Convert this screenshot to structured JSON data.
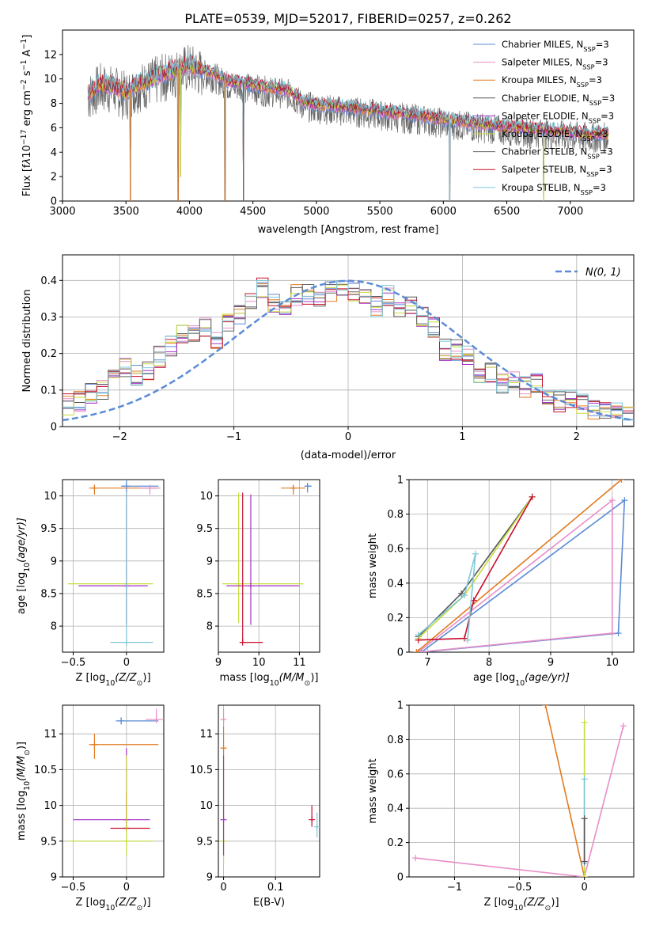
{
  "figure": {
    "title": "PLATE=0539, MJD=52017, FIBERID=0257, z=0.262"
  },
  "colors": {
    "series": [
      "#5b8bd6",
      "#e88ec8",
      "#e07b20",
      "#555555",
      "#a633c8",
      "#c8dc3c",
      "#666666",
      "#c8102e",
      "#7ec8d8"
    ]
  },
  "chart_data": [
    {
      "id": "spectrum",
      "type": "line",
      "xlabel": "wavelength [Angstrom, rest frame]",
      "ylabel_parts": [
        "Flux [f",
        "λ",
        "10",
        "−17",
        " erg cm",
        "−2",
        " s",
        "−1",
        " A",
        "−1",
        "]"
      ],
      "xlim": [
        3000,
        7500
      ],
      "ylim": [
        0,
        14
      ],
      "xticks": [
        3000,
        3500,
        4000,
        4500,
        5000,
        5500,
        6000,
        6500,
        7000
      ],
      "yticks": [
        0,
        2,
        4,
        6,
        8,
        10,
        12
      ],
      "legend": "top-right",
      "legend_entries": [
        {
          "base": "Chabrier MILES, N",
          "sub": "SSP",
          "suffix": "=3",
          "color_index": 0
        },
        {
          "base": "Salpeter MILES, N",
          "sub": "SSP",
          "suffix": "=3",
          "color_index": 1
        },
        {
          "base": "Kroupa MILES, N",
          "sub": "SSP",
          "suffix": "=3",
          "color_index": 2
        },
        {
          "base": "Chabrier ELODIE, N",
          "sub": "SSP",
          "suffix": "=3",
          "color_index": 3
        },
        {
          "base": "Salpeter ELODIE, N",
          "sub": "SSP",
          "suffix": "=3",
          "color_index": 4
        },
        {
          "base": "Kroupa ELODIE, N",
          "sub": "SSP",
          "suffix": "=3",
          "color_index": 5
        },
        {
          "base": "Chabrier STELIB, N",
          "sub": "SSP",
          "suffix": "=3",
          "color_index": 6
        },
        {
          "base": "Salpeter STELIB, N",
          "sub": "SSP",
          "suffix": "=3",
          "color_index": 7
        },
        {
          "base": "Kroupa STELIB, N",
          "sub": "SSP",
          "suffix": "=3",
          "color_index": 8
        }
      ],
      "continuum": {
        "x": [
          3200,
          3300,
          3400,
          3500,
          3600,
          3700,
          3800,
          3900,
          4000,
          4100,
          4200,
          4300,
          4400,
          4500,
          4600,
          4700,
          4800,
          4900,
          5000,
          5200,
          5400,
          5600,
          5800,
          6000,
          6200,
          6400,
          6600,
          6800,
          7000,
          7200,
          7300
        ],
        "y": [
          8.8,
          9.6,
          9.4,
          8.9,
          9.6,
          10.0,
          10.4,
          10.8,
          11.2,
          10.7,
          10.4,
          9.8,
          9.7,
          9.5,
          9.3,
          9.2,
          9.0,
          8.1,
          7.9,
          7.7,
          7.5,
          7.2,
          7.0,
          6.7,
          6.4,
          6.2,
          6.0,
          5.8,
          5.6,
          5.5,
          5.5
        ]
      },
      "absorption_lines": [
        {
          "x": 3535,
          "y": 0.0
        },
        {
          "x": 3911,
          "y": 0.0
        },
        {
          "x": 3930,
          "y": 2.0
        },
        {
          "x": 4280,
          "y": 0.0
        },
        {
          "x": 4425,
          "y": 0.0
        },
        {
          "x": 6050,
          "y": 0.0
        },
        {
          "x": 6790,
          "y": 0.0
        }
      ]
    },
    {
      "id": "residuals",
      "type": "histogram",
      "xlabel": "(data-model)/error",
      "ylabel": "Normed distribution",
      "xlim": [
        -2.5,
        2.5
      ],
      "ylim": [
        0,
        0.47
      ],
      "xticks": [
        -2,
        -1,
        0,
        1,
        2
      ],
      "yticks": [
        0.0,
        0.1,
        0.2,
        0.3,
        0.4
      ],
      "legend": "top-right",
      "legend_label": "N(0, 1)",
      "bin_centers": [
        -2.45,
        -2.35,
        -2.25,
        -2.15,
        -2.05,
        -1.95,
        -1.85,
        -1.75,
        -1.65,
        -1.55,
        -1.45,
        -1.35,
        -1.25,
        -1.15,
        -1.05,
        -0.95,
        -0.85,
        -0.75,
        -0.65,
        -0.55,
        -0.45,
        -0.35,
        -0.25,
        -0.15,
        -0.05,
        0.05,
        0.15,
        0.25,
        0.35,
        0.45,
        0.55,
        0.65,
        0.75,
        0.85,
        0.95,
        1.05,
        1.15,
        1.25,
        1.35,
        1.45,
        1.55,
        1.65,
        1.75,
        1.85,
        1.95,
        2.05,
        2.15,
        2.25,
        2.35,
        2.45
      ],
      "base_values": [
        0.06,
        0.07,
        0.09,
        0.1,
        0.13,
        0.16,
        0.14,
        0.15,
        0.19,
        0.22,
        0.25,
        0.25,
        0.27,
        0.23,
        0.29,
        0.31,
        0.34,
        0.38,
        0.34,
        0.33,
        0.36,
        0.36,
        0.34,
        0.37,
        0.38,
        0.37,
        0.35,
        0.33,
        0.36,
        0.32,
        0.33,
        0.3,
        0.27,
        0.21,
        0.21,
        0.2,
        0.15,
        0.15,
        0.12,
        0.13,
        0.11,
        0.12,
        0.09,
        0.07,
        0.08,
        0.06,
        0.05,
        0.05,
        0.04,
        0.03
      ]
    },
    {
      "id": "age-vs-Z",
      "type": "scatter",
      "xlabel_parts": [
        "Z [log",
        "10",
        "(Z/Z",
        "⊙",
        ")]"
      ],
      "ylabel_parts": [
        "age  [log",
        "10",
        "(age/yr)]"
      ],
      "xlim": [
        -0.6,
        0.35
      ],
      "ylim": [
        7.6,
        10.25
      ],
      "xticks": [
        -0.5,
        0.0
      ],
      "yticks": [
        8.0,
        8.5,
        9.0,
        9.5,
        10.0
      ],
      "points": [
        {
          "x": 0.0,
          "y": 10.15,
          "xerr": [
            0.05,
            0.3
          ],
          "yerr": [
            0.15,
            0.1
          ],
          "color_index": 0
        },
        {
          "x": -0.3,
          "y": 10.12,
          "xerr": [
            0.05,
            0.6
          ],
          "yerr": [
            0.1,
            0.05
          ],
          "color_index": 2
        },
        {
          "x": 0.22,
          "y": 10.12,
          "xerr": [
            0.1,
            0.1
          ],
          "yerr": [
            0.1,
            0.05
          ],
          "color_index": 1
        },
        {
          "x": 0.0,
          "y": 8.65,
          "xerr": [
            0.55,
            0.25
          ],
          "yerr": [
            0.6,
            1.4
          ],
          "color_index": 5
        },
        {
          "x": 0.0,
          "y": 8.62,
          "xerr": [
            0.45,
            0.2
          ],
          "yerr": [
            0.6,
            1.4
          ],
          "color_index": 4
        },
        {
          "x": 0.0,
          "y": 7.75,
          "xerr": [
            0.15,
            0.25
          ],
          "yerr": [
            0.0,
            2.3
          ],
          "color_index": 8
        }
      ]
    },
    {
      "id": "age-vs-mass",
      "type": "scatter",
      "xlabel_parts": [
        "mass [log",
        "10",
        "(M/M",
        "⊙",
        ")]"
      ],
      "ylabel": "",
      "xlim": [
        9.0,
        11.5
      ],
      "ylim": [
        7.6,
        10.25
      ],
      "xticks": [
        9,
        10,
        11
      ],
      "yticks": [
        8.0,
        8.5,
        9.0,
        9.5,
        10.0
      ],
      "points": [
        {
          "x": 11.2,
          "y": 10.15,
          "xerr": [
            0.05,
            0.1
          ],
          "yerr": [
            0.1,
            0.05
          ],
          "color_index": 0
        },
        {
          "x": 10.85,
          "y": 10.12,
          "xerr": [
            0.3,
            0.3
          ],
          "yerr": [
            0.1,
            0.05
          ],
          "color_index": 2
        },
        {
          "x": 9.5,
          "y": 8.65,
          "xerr": [
            0.4,
            1.6
          ],
          "yerr": [
            0.6,
            1.4
          ],
          "color_index": 5
        },
        {
          "x": 9.8,
          "y": 8.62,
          "xerr": [
            0.6,
            1.2
          ],
          "yerr": [
            0.6,
            1.4
          ],
          "color_index": 4
        },
        {
          "x": 9.6,
          "y": 7.75,
          "xerr": [
            0.05,
            0.5
          ],
          "yerr": [
            0.0,
            2.3
          ],
          "color_index": 7
        }
      ]
    },
    {
      "id": "weight-vs-age",
      "type": "line",
      "xlabel_parts": [
        "age  [log",
        "10",
        "(age/yr)]"
      ],
      "ylabel": "mass weight",
      "xlim": [
        6.7,
        10.35
      ],
      "ylim": [
        0,
        1
      ],
      "xticks": [
        7,
        8,
        9,
        10
      ],
      "yticks": [
        0.0,
        0.2,
        0.4,
        0.6,
        0.8,
        1.0
      ],
      "series": [
        {
          "color_index": 0,
          "points": [
            [
              6.9,
              0.0
            ],
            [
              10.1,
              0.11
            ],
            [
              10.2,
              0.88
            ],
            [
              6.9,
              0.0
            ]
          ]
        },
        {
          "color_index": 1,
          "points": [
            [
              6.85,
              0.0
            ],
            [
              10.0,
              0.88
            ],
            [
              10.0,
              0.11
            ],
            [
              6.85,
              0.0
            ]
          ]
        },
        {
          "color_index": 2,
          "points": [
            [
              6.82,
              0.0
            ],
            [
              10.15,
              1.0
            ]
          ]
        },
        {
          "color_index": 3,
          "points": [
            [
              6.85,
              0.09
            ],
            [
              7.55,
              0.34
            ],
            [
              8.7,
              0.9
            ]
          ]
        },
        {
          "color_index": 5,
          "points": [
            [
              6.85,
              0.08
            ],
            [
              7.6,
              0.33
            ],
            [
              8.7,
              0.9
            ]
          ]
        },
        {
          "color_index": 7,
          "points": [
            [
              6.85,
              0.07
            ],
            [
              7.6,
              0.08
            ],
            [
              7.75,
              0.3
            ],
            [
              8.7,
              0.9
            ]
          ]
        },
        {
          "color_index": 8,
          "points": [
            [
              6.85,
              0.1
            ],
            [
              7.6,
              0.33
            ],
            [
              7.78,
              0.57
            ],
            [
              7.65,
              0.07
            ]
          ]
        }
      ]
    },
    {
      "id": "mass-vs-Z",
      "type": "scatter",
      "xlabel_parts": [
        "Z [log",
        "10",
        "(Z/Z",
        "⊙",
        ")]"
      ],
      "ylabel_parts": [
        "mass [log",
        "10",
        "(M/M",
        "⊙",
        ")]"
      ],
      "xlim": [
        -0.6,
        0.35
      ],
      "ylim": [
        9.0,
        11.4
      ],
      "xticks": [
        -0.5,
        0.0
      ],
      "yticks": [
        9.0,
        9.5,
        10.0,
        10.5,
        11.0
      ],
      "points": [
        {
          "x": -0.05,
          "y": 11.18,
          "xerr": [
            0.05,
            0.35
          ],
          "yerr": [
            0.05,
            0.05
          ],
          "color_index": 0
        },
        {
          "x": 0.28,
          "y": 11.2,
          "xerr": [
            0.1,
            0.1
          ],
          "yerr": [
            0.05,
            0.15
          ],
          "color_index": 1
        },
        {
          "x": -0.3,
          "y": 10.85,
          "xerr": [
            0.05,
            0.6
          ],
          "yerr": [
            0.2,
            0.15
          ],
          "color_index": 2
        },
        {
          "x": 0.0,
          "y": 9.8,
          "xerr": [
            0.5,
            0.22
          ],
          "yerr": [
            0.0,
            1.0
          ],
          "color_index": 4
        },
        {
          "x": 0.0,
          "y": 9.68,
          "xerr": [
            0.15,
            0.22
          ],
          "yerr": [
            0.0,
            0.5
          ],
          "color_index": 7
        },
        {
          "x": 0.0,
          "y": 9.5,
          "xerr": [
            0.55,
            0.25
          ],
          "yerr": [
            0.2,
            1.2
          ],
          "color_index": 5
        }
      ]
    },
    {
      "id": "mass-vs-EBV",
      "type": "scatter",
      "xlabel": "E(B-V)",
      "ylabel": "",
      "xlim": [
        -0.01,
        0.185
      ],
      "ylim": [
        9.0,
        11.4
      ],
      "xticks": [
        0.0,
        0.1
      ],
      "yticks": [
        9.0,
        9.5,
        10.0,
        10.5,
        11.0
      ],
      "points": [
        {
          "x": 0.0,
          "y": 11.2,
          "xerr": [
            0,
            0
          ],
          "yerr": [
            0.1,
            0.15
          ],
          "color_index": 1
        },
        {
          "x": 0.0,
          "y": 10.8,
          "xerr": [
            0,
            0
          ],
          "yerr": [
            0.1,
            0.3
          ],
          "color_index": 2
        },
        {
          "x": 0.0,
          "y": 9.5,
          "xerr": [
            0,
            0
          ],
          "yerr": [
            0.3,
            1.2
          ],
          "color_index": 5
        },
        {
          "x": 0.0,
          "y": 9.8,
          "xerr": [
            0,
            0
          ],
          "yerr": [
            0.5,
            0.9
          ],
          "color_index": 4
        },
        {
          "x": 0.17,
          "y": 9.8,
          "xerr": [
            0,
            0
          ],
          "yerr": [
            0.1,
            0.2
          ],
          "color_index": 7
        },
        {
          "x": 0.18,
          "y": 9.7,
          "xerr": [
            0,
            0
          ],
          "yerr": [
            0.15,
            0.2
          ],
          "color_index": 8
        }
      ]
    },
    {
      "id": "weight-vs-Z",
      "type": "line",
      "xlabel_parts": [
        "Z [log",
        "10",
        "(Z/Z",
        "⊙",
        ")]"
      ],
      "ylabel": "mass weight",
      "xlim": [
        -1.35,
        0.38
      ],
      "ylim": [
        0,
        1
      ],
      "xticks": [
        -1.0,
        -0.5,
        0.0
      ],
      "yticks": [
        0.0,
        0.2,
        0.4,
        0.6,
        0.8,
        1.0
      ],
      "series": [
        {
          "color_index": 1,
          "points": [
            [
              -1.3,
              0.11
            ],
            [
              0.0,
              0.0
            ],
            [
              0.3,
              0.88
            ]
          ]
        },
        {
          "color_index": 2,
          "points": [
            [
              -0.3,
              1.0
            ],
            [
              0.0,
              0.0
            ]
          ]
        },
        {
          "color_index": 5,
          "points": [
            [
              0.0,
              0.9
            ],
            [
              0.0,
              0.0
            ]
          ]
        },
        {
          "color_index": 8,
          "points": [
            [
              0.0,
              0.57
            ],
            [
              0.0,
              0.08
            ]
          ]
        },
        {
          "color_index": 3,
          "points": [
            [
              0.0,
              0.34
            ],
            [
              0.0,
              0.09
            ]
          ]
        }
      ]
    }
  ]
}
